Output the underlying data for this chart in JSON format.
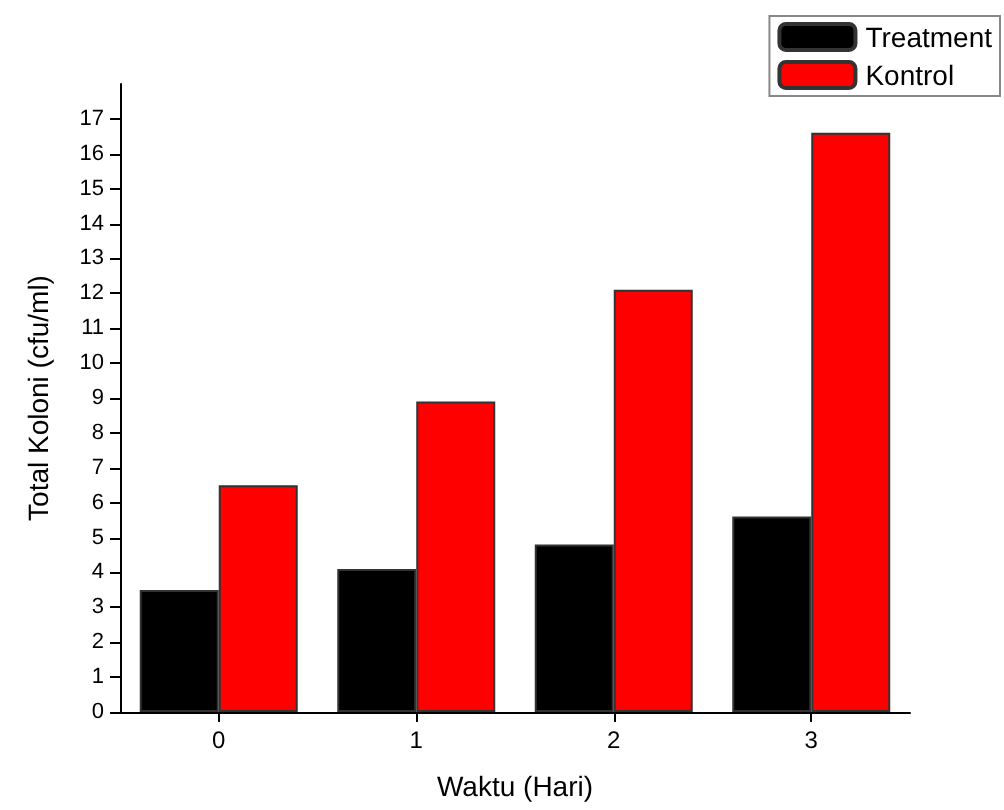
{
  "chart_data": {
    "type": "bar",
    "xlabel": "Waktu (Hari)",
    "ylabel": "Total Koloni (cfu/ml)",
    "categories": [
      "0",
      "1",
      "2",
      "3"
    ],
    "series": [
      {
        "name": "Treatment",
        "color": "#000000",
        "values": [
          3.5,
          4.1,
          4.8,
          5.6
        ]
      },
      {
        "name": "Kontrol",
        "color": "#ff0000",
        "values": [
          6.5,
          8.9,
          12.1,
          16.6
        ]
      }
    ],
    "ylim": [
      0,
      18
    ],
    "yticks": [
      0,
      1,
      2,
      3,
      4,
      5,
      6,
      7,
      8,
      9,
      10,
      11,
      12,
      13,
      14,
      15,
      16,
      17
    ],
    "grid": false,
    "legend": "top right"
  }
}
